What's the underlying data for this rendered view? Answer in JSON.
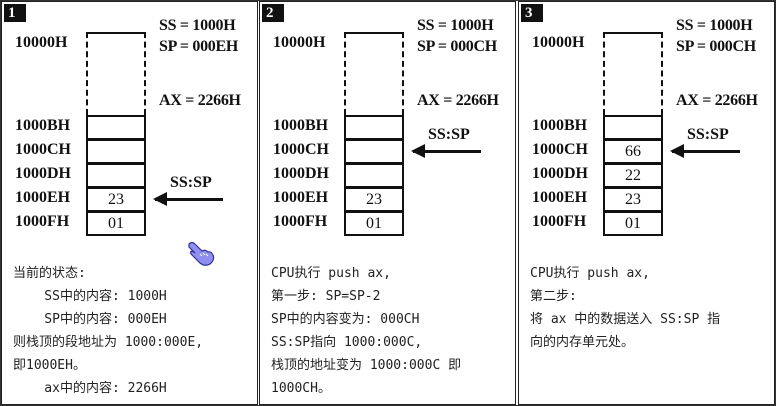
{
  "panels": [
    {
      "number": "1",
      "ss": "SS = 1000H",
      "sp": "SP = 000EH",
      "ax": "AX = 2266H",
      "top_address": "10000H",
      "rows": [
        {
          "address": "1000BH",
          "value": ""
        },
        {
          "address": "1000CH",
          "value": ""
        },
        {
          "address": "1000DH",
          "value": ""
        },
        {
          "address": "1000EH",
          "value": "23"
        },
        {
          "address": "1000FH",
          "value": "01"
        }
      ],
      "pointer_label": "SS:SP",
      "pointer_row": 3,
      "cursor_icon": true,
      "description": [
        "当前的状态:",
        "    SS中的内容: 1000H",
        "    SP中的内容: 000EH",
        "则栈顶的段地址为 1000:000E,",
        "即1000EH。",
        "    ax中的内容: 2266H"
      ]
    },
    {
      "number": "2",
      "ss": "SS = 1000H",
      "sp": "SP = 000CH",
      "ax": "AX = 2266H",
      "top_address": "10000H",
      "rows": [
        {
          "address": "1000BH",
          "value": ""
        },
        {
          "address": "1000CH",
          "value": ""
        },
        {
          "address": "1000DH",
          "value": ""
        },
        {
          "address": "1000EH",
          "value": "23"
        },
        {
          "address": "1000FH",
          "value": "01"
        }
      ],
      "pointer_label": "SS:SP",
      "pointer_row": 1,
      "cursor_icon": false,
      "description": [
        "CPU执行 push ax,",
        "第一步: SP=SP-2",
        "SP中的内容变为: 000CH",
        "SS:SP指向 1000:000C,",
        "栈顶的地址变为 1000:000C 即",
        "1000CH。"
      ]
    },
    {
      "number": "3",
      "ss": "SS = 1000H",
      "sp": "SP = 000CH",
      "ax": "AX = 2266H",
      "top_address": "10000H",
      "rows": [
        {
          "address": "1000BH",
          "value": ""
        },
        {
          "address": "1000CH",
          "value": "66"
        },
        {
          "address": "1000DH",
          "value": "22"
        },
        {
          "address": "1000EH",
          "value": "23"
        },
        {
          "address": "1000FH",
          "value": "01"
        }
      ],
      "pointer_label": "SS:SP",
      "pointer_row": 1,
      "cursor_icon": false,
      "description": [
        "CPU执行 push ax,",
        "第二步:",
        "将 ax 中的数据送入 SS:SP 指",
        "向的内存单元处。"
      ]
    }
  ]
}
